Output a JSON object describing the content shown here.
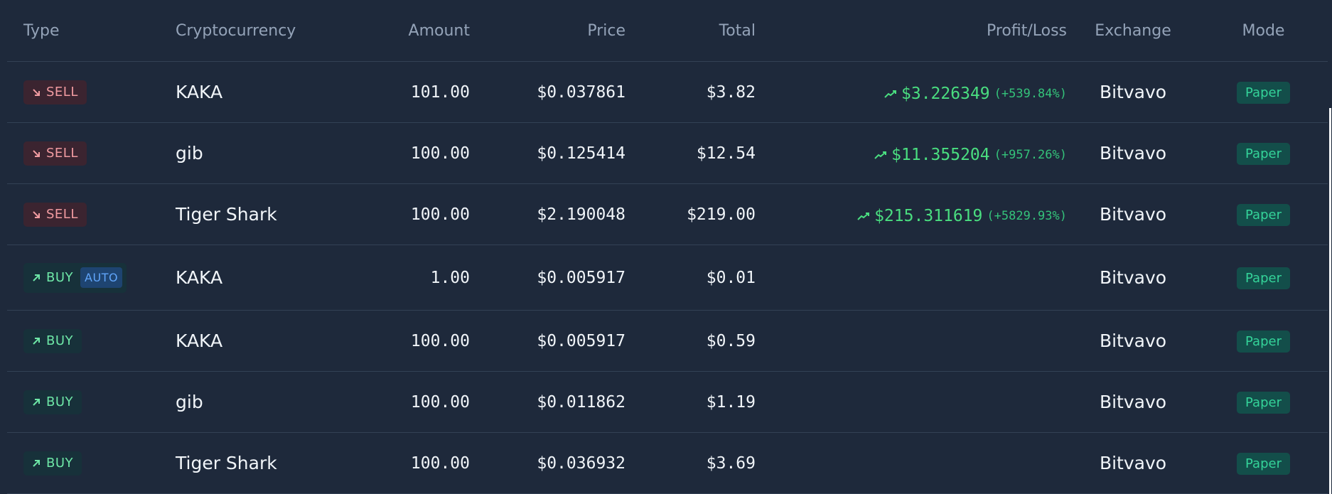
{
  "table": {
    "columns": {
      "type": "Type",
      "cryptocurrency": "Cryptocurrency",
      "amount": "Amount",
      "price": "Price",
      "total": "Total",
      "profit_loss": "Profit/Loss",
      "exchange": "Exchange",
      "mode": "Mode"
    },
    "rows": [
      {
        "type": "SELL",
        "type_kind": "sell",
        "auto": "",
        "crypto": "KAKA",
        "amount": "101.00",
        "price": "$0.037861",
        "total": "$3.82",
        "pl_value": "$3.226349",
        "pl_pct": "(+539.84%)",
        "exchange": "Bitvavo",
        "mode": "Paper"
      },
      {
        "type": "SELL",
        "type_kind": "sell",
        "auto": "",
        "crypto": "gib",
        "amount": "100.00",
        "price": "$0.125414",
        "total": "$12.54",
        "pl_value": "$11.355204",
        "pl_pct": "(+957.26%)",
        "exchange": "Bitvavo",
        "mode": "Paper"
      },
      {
        "type": "SELL",
        "type_kind": "sell",
        "auto": "",
        "crypto": "Tiger Shark",
        "amount": "100.00",
        "price": "$2.190048",
        "total": "$219.00",
        "pl_value": "$215.311619",
        "pl_pct": "(+5829.93%)",
        "exchange": "Bitvavo",
        "mode": "Paper"
      },
      {
        "type": "BUY",
        "type_kind": "buy",
        "auto": "AUTO",
        "crypto": "KAKA",
        "amount": "1.00",
        "price": "$0.005917",
        "total": "$0.01",
        "pl_value": "",
        "pl_pct": "",
        "exchange": "Bitvavo",
        "mode": "Paper"
      },
      {
        "type": "BUY",
        "type_kind": "buy",
        "auto": "",
        "crypto": "KAKA",
        "amount": "100.00",
        "price": "$0.005917",
        "total": "$0.59",
        "pl_value": "",
        "pl_pct": "",
        "exchange": "Bitvavo",
        "mode": "Paper"
      },
      {
        "type": "BUY",
        "type_kind": "buy",
        "auto": "",
        "crypto": "gib",
        "amount": "100.00",
        "price": "$0.011862",
        "total": "$1.19",
        "pl_value": "",
        "pl_pct": "",
        "exchange": "Bitvavo",
        "mode": "Paper"
      },
      {
        "type": "BUY",
        "type_kind": "buy",
        "auto": "",
        "crypto": "Tiger Shark",
        "amount": "100.00",
        "price": "$0.036932",
        "total": "$3.69",
        "pl_value": "",
        "pl_pct": "",
        "exchange": "Bitvavo",
        "mode": "Paper"
      }
    ]
  },
  "icons": {
    "sell": "arrow-down-right-icon",
    "buy": "arrow-up-right-icon",
    "profit": "trending-up-icon"
  },
  "colors": {
    "background": "#1e293b",
    "sell": "#f19ba1",
    "buy": "#6ee7a7",
    "profit": "#4ade80",
    "auto": "#60a5fa",
    "mode": "#34d399"
  }
}
